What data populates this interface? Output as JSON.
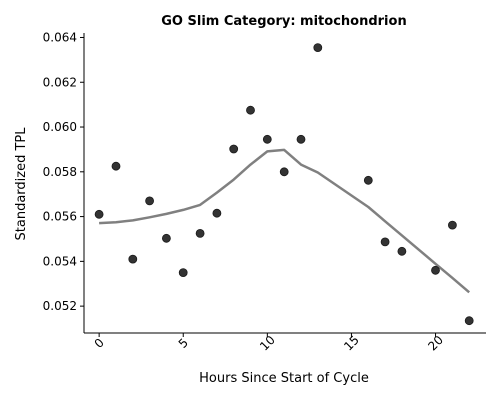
{
  "chart_data": {
    "type": "scatter",
    "title": "GO Slim Category: mitochondrion",
    "xlabel": "Hours Since Start of Cycle",
    "ylabel": "Standardized TPL",
    "xlim": [
      -0.9,
      23.0
    ],
    "ylim": [
      0.0508,
      0.0642
    ],
    "xticks": [
      0,
      5,
      10,
      15,
      20
    ],
    "yticks": [
      0.052,
      0.054,
      0.056,
      0.058,
      0.06,
      0.062,
      0.064
    ],
    "ytick_labels": [
      "0.052",
      "0.054",
      "0.056",
      "0.058",
      "0.060",
      "0.062",
      "0.064"
    ],
    "grid": false,
    "series": [
      {
        "kind": "points",
        "x": [
          0,
          1,
          2,
          3,
          4,
          5,
          6,
          7,
          8,
          9,
          10,
          11,
          12,
          13,
          16,
          17,
          18,
          20,
          21,
          22
        ],
        "y": [
          0.0561,
          0.05825,
          0.0541,
          0.0567,
          0.05503,
          0.0535,
          0.05525,
          0.05615,
          0.05902,
          0.06075,
          0.05945,
          0.058,
          0.05945,
          0.06355,
          0.05762,
          0.05487,
          0.05445,
          0.0536,
          0.05562,
          0.05135
        ],
        "color": "#333333"
      },
      {
        "kind": "trend",
        "x": [
          0,
          1,
          2,
          3,
          4,
          5,
          6,
          7,
          8,
          9,
          10,
          11,
          12,
          13,
          16,
          17,
          18,
          20,
          21,
          22
        ],
        "y": [
          0.05571,
          0.05575,
          0.05583,
          0.05597,
          0.05612,
          0.0563,
          0.05652,
          0.05707,
          0.05765,
          0.05832,
          0.05891,
          0.05898,
          0.05832,
          0.05797,
          0.05643,
          0.05579,
          0.05516,
          0.05389,
          0.05326,
          0.05262
        ],
        "color": "#808080"
      }
    ]
  }
}
